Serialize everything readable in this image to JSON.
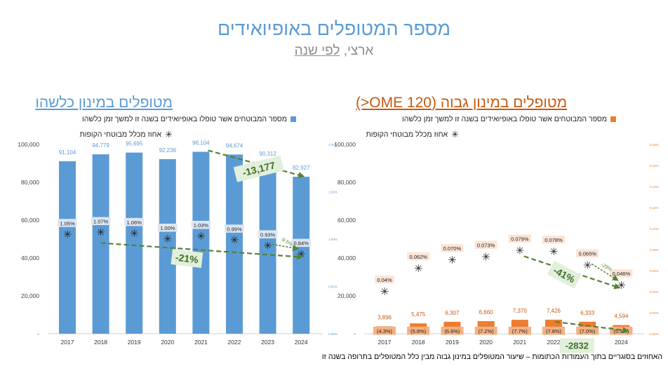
{
  "title": "מספר המטופלים באופיואידים",
  "subtitle": {
    "prefix": "ארצי, ",
    "underlined": "לפי שנה"
  },
  "left_panel": {
    "title": "מטופלים במינון כלשהו",
    "legend_bar": "מספר המבוטחים אשר טופלו באופיואידים בשנה זו למשך זמן כלשהו",
    "legend_marker": "אחוז מכלל מבוטחי הקופות"
  },
  "right_panel": {
    "title": "מטופלים במינון גבוה (OME 120<)",
    "legend_bar": "מספר המבוטחים אשר טופלו באופיואידים בשנה זו למשך זמן כלשהו",
    "legend_marker": "אחוז מכלל מבוטחי הקופות"
  },
  "footnote": "האחוזים בסוגריים בתוך העמודות הכתומות – שיעור המטופלים במינון גבוה מבין כלל המטופלים בתרופה בשנה זו",
  "colors": {
    "title": "#5b9bd5",
    "blue_bar": "#5b9bd5",
    "orange_bar": "#ed7d31",
    "arrow": "#548235",
    "arrow_label_bg": "#e2efda",
    "orange_title": "#c55a11"
  },
  "chart_data": [
    {
      "type": "bar",
      "categories": [
        "2017",
        "2018",
        "2019",
        "2020",
        "2021",
        "2022",
        "2023",
        "2024"
      ],
      "values": [
        91104,
        94779,
        95695,
        92236,
        96104,
        94674,
        90312,
        82927
      ],
      "value_labels": [
        "91,104",
        "94,779",
        "95,695",
        "92,236",
        "96,104",
        "94,674",
        "90,312",
        "82,927"
      ],
      "ylim": [
        0,
        100000
      ],
      "ytick_labels": [
        "-",
        "20,000",
        "40,000",
        "60,000",
        "80,000",
        "100,000"
      ],
      "secondary_ylim": [
        0,
        2
      ],
      "secondary_ytick_labels": [
        "0.00%",
        "0.50%",
        "1.00%",
        "1.50%",
        "2.00%"
      ],
      "marker_series": {
        "values": [
          1.05,
          1.07,
          1.06,
          1.0,
          1.03,
          0.99,
          0.93,
          0.84
        ],
        "labels": [
          "1.05%",
          "1.07%",
          "1.06%",
          "1.00%",
          "1.03%",
          "0.99%",
          "0.93%",
          "0.84%"
        ]
      },
      "annotations": [
        {
          "text": "-13,177",
          "kind": "bar_trend",
          "from": "2021",
          "to": "2024"
        },
        {
          "text": "-21%",
          "kind": "marker_trend",
          "from": "2018",
          "to": "2024"
        },
        {
          "text": "-9.5%",
          "kind": "marker_step",
          "from": "2023",
          "to": "2024"
        }
      ]
    },
    {
      "type": "bar",
      "categories": [
        "2017",
        "2018",
        "2019",
        "2020",
        "2021",
        "2022",
        "2023",
        "2024"
      ],
      "values": [
        3896,
        5475,
        6307,
        6660,
        7370,
        7426,
        6333,
        4594
      ],
      "value_labels": [
        "3,896",
        "5,475",
        "6,307",
        "6,660",
        "7,370",
        "7,426",
        "6,333",
        "4,594"
      ],
      "share_labels": [
        "(4.3%)",
        "(5.8%)",
        "(6.6%)",
        "(7.2%)",
        "(7.7%)",
        "(7.8%)",
        "(7.0%)",
        "(5.5%)"
      ],
      "ylim": [
        0,
        100000
      ],
      "ytick_labels": [
        "-",
        "20,000",
        "40,000",
        "60,000",
        "80,000",
        "100,000"
      ],
      "secondary_ylim": [
        0,
        0.18
      ],
      "secondary_ytick_labels": [
        "0.00%",
        "0.02%",
        "0.04%",
        "0.06%",
        "0.08%",
        "0.10%",
        "0.12%",
        "0.14%",
        "0.16%",
        "0.18%"
      ],
      "marker_series": {
        "values": [
          0.04,
          0.062,
          0.07,
          0.073,
          0.079,
          0.078,
          0.065,
          0.046
        ],
        "labels": [
          "0.04%",
          "0.062%",
          "0.070%",
          "0.073%",
          "0.079%",
          "0.078%",
          "0.065%",
          "0.046%"
        ]
      },
      "annotations": [
        {
          "text": "-2832",
          "kind": "bar_trend",
          "from": "2022",
          "to": "2024"
        },
        {
          "text": "-41%",
          "kind": "marker_trend",
          "from": "2021",
          "to": "2024"
        },
        {
          "text": "-29%",
          "kind": "marker_step",
          "from": "2023",
          "to": "2024"
        }
      ]
    }
  ]
}
